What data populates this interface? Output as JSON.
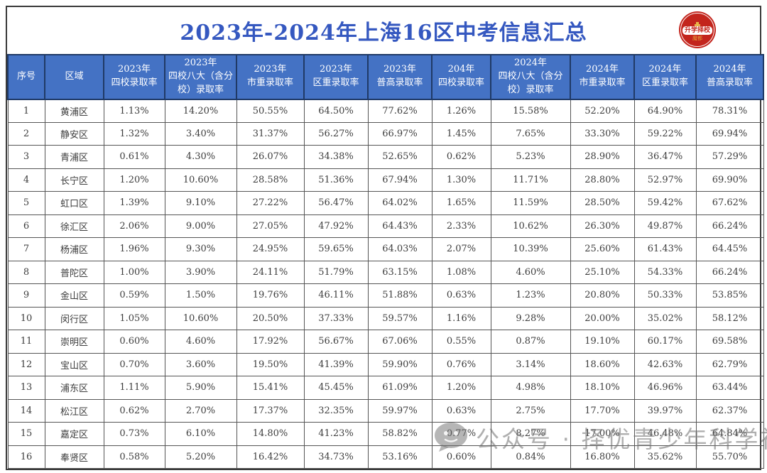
{
  "title": "2023年-2024年上海16区中考信息汇总",
  "logo": {
    "main_text": "升学择校",
    "sub_text": "魔都",
    "bg_color": "#c3251d",
    "icon": "building-icon"
  },
  "watermark": {
    "icon": "wechat-icon",
    "text": "公众号 · 择优青少年科学社",
    "color": "#6e6e6e"
  },
  "colors": {
    "header_bg": "#4472c4",
    "header_text": "#ffffff",
    "title_text": "#3558c0",
    "cell_border": "#555555",
    "header_border": "#203a66"
  },
  "chart_data": {
    "type": "table",
    "title": "2023年-2024年上海16区中考信息汇总",
    "columns": [
      "序号",
      "区域",
      "2023年\n四校录取率",
      "2023年\n四校八大（含分校）录取率",
      "2023年\n市重录取率",
      "2023年\n区重录取率",
      "2023年\n普高录取率",
      "204年\n四校录取率",
      "2024年\n四校八大（含分校）录取率",
      "2024年\n市重录取率",
      "2024年\n区重录取率",
      "2024年\n普高录取率"
    ],
    "rows": [
      [
        "1",
        "黄浦区",
        "1.13%",
        "14.20%",
        "50.55%",
        "64.50%",
        "77.62%",
        "1.26%",
        "15.58%",
        "52.20%",
        "64.90%",
        "78.31%"
      ],
      [
        "2",
        "静安区",
        "1.32%",
        "3.40%",
        "31.37%",
        "56.27%",
        "66.97%",
        "1.45%",
        "7.65%",
        "33.30%",
        "59.22%",
        "69.94%"
      ],
      [
        "3",
        "青浦区",
        "0.61%",
        "4.30%",
        "26.07%",
        "34.38%",
        "52.65%",
        "0.62%",
        "5.23%",
        "28.90%",
        "36.47%",
        "57.29%"
      ],
      [
        "4",
        "长宁区",
        "1.20%",
        "10.60%",
        "28.58%",
        "51.36%",
        "67.94%",
        "1.30%",
        "11.71%",
        "28.80%",
        "52.97%",
        "69.90%"
      ],
      [
        "5",
        "虹口区",
        "1.39%",
        "9.10%",
        "27.22%",
        "56.47%",
        "64.02%",
        "1.65%",
        "11.59%",
        "28.50%",
        "59.42%",
        "67.62%"
      ],
      [
        "6",
        "徐汇区",
        "2.06%",
        "9.00%",
        "27.05%",
        "47.92%",
        "64.43%",
        "2.33%",
        "10.62%",
        "26.30%",
        "49.87%",
        "66.24%"
      ],
      [
        "7",
        "杨浦区",
        "1.96%",
        "9.30%",
        "24.95%",
        "59.65%",
        "64.03%",
        "2.07%",
        "10.39%",
        "25.60%",
        "61.43%",
        "64.45%"
      ],
      [
        "8",
        "普陀区",
        "1.00%",
        "3.90%",
        "24.11%",
        "51.79%",
        "63.15%",
        "1.08%",
        "4.60%",
        "25.10%",
        "54.33%",
        "66.24%"
      ],
      [
        "9",
        "金山区",
        "0.59%",
        "1.50%",
        "19.76%",
        "46.11%",
        "51.88%",
        "0.63%",
        "1.23%",
        "20.80%",
        "50.33%",
        "53.85%"
      ],
      [
        "10",
        "闵行区",
        "1.05%",
        "10.60%",
        "20.50%",
        "37.33%",
        "59.57%",
        "1.16%",
        "9.28%",
        "20.00%",
        "35.02%",
        "58.12%"
      ],
      [
        "11",
        "崇明区",
        "0.60%",
        "4.60%",
        "17.92%",
        "56.67%",
        "67.06%",
        "0.55%",
        "0.87%",
        "19.10%",
        "60.17%",
        "69.58%"
      ],
      [
        "12",
        "宝山区",
        "0.70%",
        "3.60%",
        "19.50%",
        "41.39%",
        "59.90%",
        "0.76%",
        "3.14%",
        "18.60%",
        "42.63%",
        "62.79%"
      ],
      [
        "13",
        "浦东区",
        "1.11%",
        "5.90%",
        "15.41%",
        "45.45%",
        "61.09%",
        "1.20%",
        "4.98%",
        "18.10%",
        "46.96%",
        "63.44%"
      ],
      [
        "14",
        "松江区",
        "0.62%",
        "2.70%",
        "17.37%",
        "32.35%",
        "59.97%",
        "0.63%",
        "2.75%",
        "17.70%",
        "39.97%",
        "62.37%"
      ],
      [
        "15",
        "嘉定区",
        "0.73%",
        "6.10%",
        "14.80%",
        "41.23%",
        "58.82%",
        "0.77%",
        "8.27%",
        "17.00%",
        "46.48%",
        "64.84%"
      ],
      [
        "16",
        "奉贤区",
        "0.58%",
        "5.20%",
        "16.42%",
        "34.73%",
        "53.16%",
        "0.60%",
        "0.84%",
        "16.80%",
        "35.62%",
        "55.70%"
      ]
    ]
  }
}
